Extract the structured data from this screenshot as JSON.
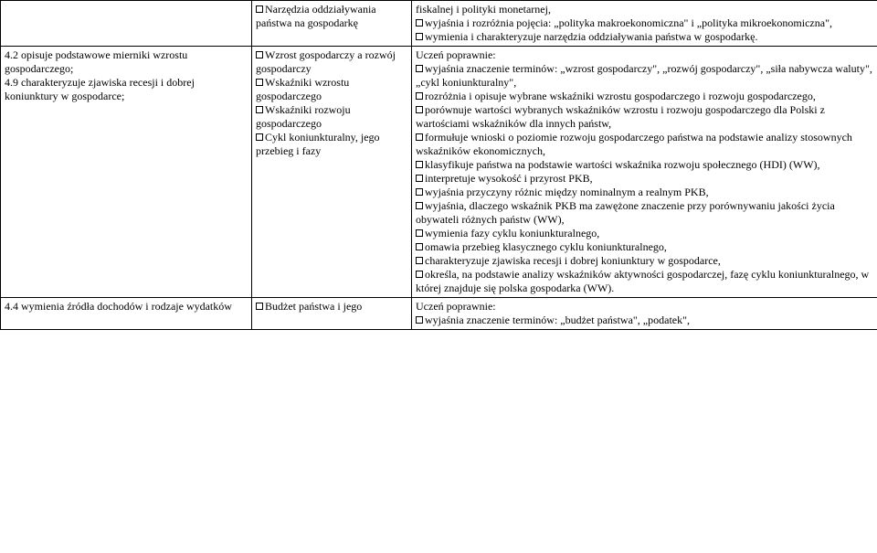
{
  "row1": {
    "col1": "",
    "col2": {
      "items": [
        "Narzędzia oddziaływania państwa na gospodarkę"
      ]
    },
    "col3": {
      "plain_first": "fiskalnej i polityki monetarnej,",
      "items": [
        "wyjaśnia i rozróżnia pojęcia: „polityka makroekonomiczna\" i „polityka mikroekonomiczna\",",
        "wymienia i charakteryzuje narzędzia oddziaływania państwa w gospodarkę."
      ]
    }
  },
  "row2": {
    "col1": {
      "lines": [
        "4.2 opisuje podstawowe mierniki wzrostu gospodarczego;",
        "4.9 charakteryzuje zjawiska recesji i dobrej koniunktury w gospodarce;"
      ]
    },
    "col2": {
      "items": [
        "Wzrost gospodarczy a rozwój gospodarczy",
        "Wskaźniki wzrostu gospodarczego",
        "Wskaźniki rozwoju gospodarczego",
        "Cykl koniunkturalny, jego przebieg i fazy"
      ]
    },
    "col3": {
      "header": "Uczeń poprawnie:",
      "items": [
        "wyjaśnia znaczenie terminów: „wzrost gospodarczy\", „rozwój gospodarczy\", „siła nabywcza waluty\", „cykl koniunkturalny\",",
        "rozróżnia i opisuje wybrane wskaźniki wzrostu gospodarczego i rozwoju gospodarczego,",
        "porównuje wartości wybranych wskaźników wzrostu i rozwoju gospodarczego dla Polski z wartościami wskaźników dla innych państw,",
        "formułuje wnioski o poziomie rozwoju gospodarczego państwa na podstawie analizy stosownych wskaźników ekonomicznych,",
        "klasyfikuje państwa na podstawie wartości wskaźnika rozwoju społecznego (HDI) (WW),",
        "interpretuje wysokość i przyrost PKB,",
        "wyjaśnia przyczyny różnic między nominalnym a realnym PKB,",
        "wyjaśnia, dlaczego wskaźnik PKB ma zawężone znaczenie przy porównywaniu jakości życia obywateli różnych państw (WW),",
        "wymienia fazy cyklu koniunkturalnego,",
        "omawia przebieg klasycznego cyklu koniunkturalnego,",
        "charakteryzuje zjawiska recesji i dobrej koniunktury w gospodarce,",
        "określa, na podstawie analizy wskaźników aktywności gospodarczej, fazę cyklu koniunkturalnego, w której znajduje się polska gospodarka (WW)."
      ]
    }
  },
  "row3": {
    "col1": "4.4 wymienia źródła dochodów i rodzaje wydatków",
    "col2": {
      "items": [
        "Budżet państwa i jego"
      ]
    },
    "col3": {
      "header": "Uczeń poprawnie:",
      "items": [
        "wyjaśnia znaczenie terminów: „budżet państwa\", „podatek\","
      ]
    }
  }
}
